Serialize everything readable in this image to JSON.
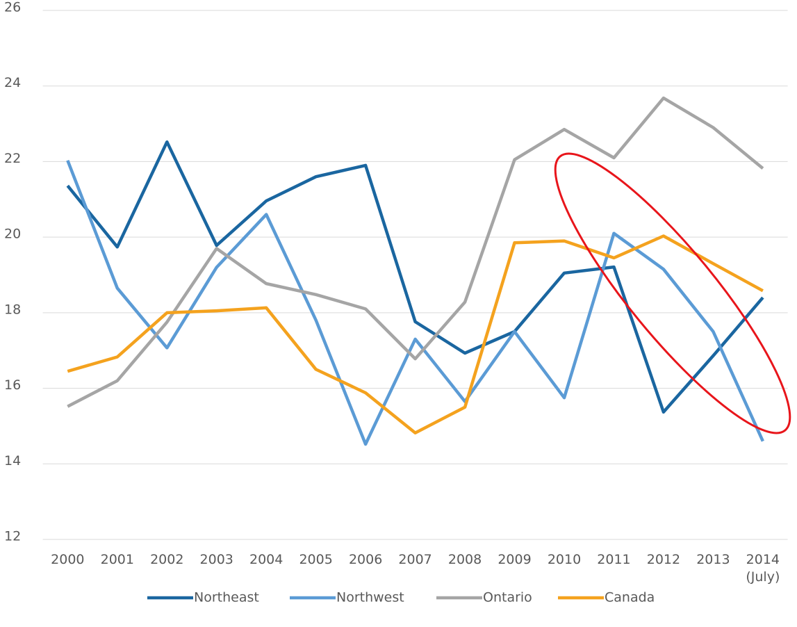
{
  "chart_data": {
    "type": "line",
    "categories": [
      "2000",
      "2001",
      "2002",
      "2003",
      "2004",
      "2005",
      "2006",
      "2007",
      "2008",
      "2009",
      "2010",
      "2011",
      "2012",
      "2013",
      "2014\n(July)"
    ],
    "series": [
      {
        "name": "Northeast",
        "color": "#1a66a0",
        "values": [
          21.36,
          19.74,
          22.52,
          19.78,
          20.96,
          21.6,
          21.9,
          17.76,
          16.93,
          17.5,
          19.05,
          19.21,
          15.37,
          16.86,
          18.4
        ]
      },
      {
        "name": "Northwest",
        "color": "#5b9bd5",
        "values": [
          22.03,
          18.65,
          17.07,
          19.2,
          20.6,
          17.8,
          14.52,
          17.3,
          15.65,
          17.5,
          15.75,
          20.1,
          19.15,
          17.5,
          14.6
        ]
      },
      {
        "name": "Ontario",
        "color": "#a5a5a5",
        "values": [
          15.52,
          16.2,
          17.75,
          19.7,
          18.77,
          18.48,
          18.1,
          16.78,
          18.28,
          22.05,
          22.85,
          22.1,
          23.68,
          22.9,
          21.82
        ]
      },
      {
        "name": "Canada",
        "color": "#f4a21e",
        "values": [
          16.45,
          16.83,
          18.0,
          18.05,
          18.13,
          16.5,
          15.88,
          14.82,
          15.5,
          19.85,
          19.9,
          19.45,
          20.03,
          19.3,
          18.58
        ]
      }
    ],
    "ylim": [
      12,
      26
    ],
    "yticks": [
      12,
      14,
      16,
      18,
      20,
      22,
      24,
      26
    ],
    "grid": true,
    "legend": "bottom"
  }
}
